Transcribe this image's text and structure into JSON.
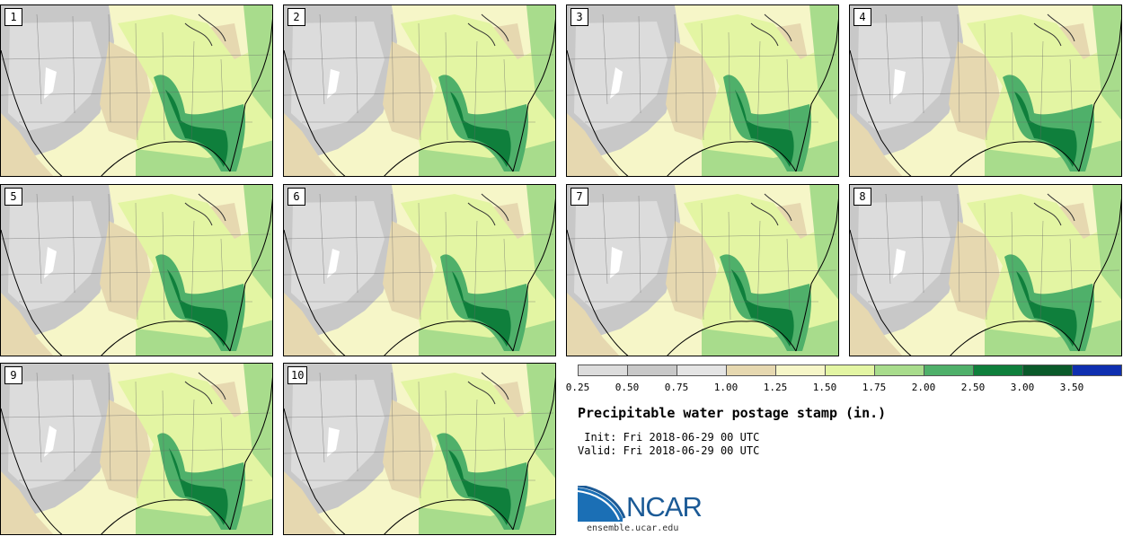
{
  "panels": [
    {
      "label": "1"
    },
    {
      "label": "2"
    },
    {
      "label": "3"
    },
    {
      "label": "4"
    },
    {
      "label": "5"
    },
    {
      "label": "6"
    },
    {
      "label": "7"
    },
    {
      "label": "8"
    },
    {
      "label": "9"
    },
    {
      "label": "10"
    }
  ],
  "colorbar": {
    "ticks": [
      "0.25",
      "0.50",
      "0.75",
      "1.00",
      "1.25",
      "1.50",
      "1.75",
      "2.00",
      "2.50",
      "3.00",
      "3.50"
    ],
    "colors": [
      "#dcdcdc",
      "#c8c8c8",
      "#e4e4e4",
      "#e6d8b0",
      "#f6f6c8",
      "#e3f5a3",
      "#a8dc8c",
      "#4fb06a",
      "#0f7f3c",
      "#0a5a2a",
      "#0f2fb0"
    ]
  },
  "title": "Precipitable water postage stamp (in.)",
  "init_line": " Init: Fri 2018-06-29 00 UTC",
  "valid_line": "Valid: Fri 2018-06-29 00 UTC",
  "logo": {
    "text": "NCAR",
    "site": "ensemble.ucar.edu",
    "brand_color": "#1b5a96"
  }
}
